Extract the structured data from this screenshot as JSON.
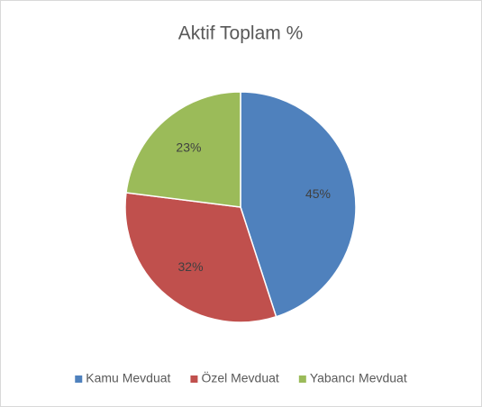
{
  "chart_data": {
    "type": "pie",
    "title": "Aktif Toplam %",
    "categories": [
      "Kamu Mevduat",
      "Özel Mevduat",
      "Yabancı Mevduat"
    ],
    "values": [
      45,
      32,
      23
    ],
    "value_labels": [
      "45%",
      "32%",
      "23%"
    ],
    "colors": [
      "#4f81bd",
      "#c0504d",
      "#9bbb59"
    ],
    "legend": "bottom"
  }
}
